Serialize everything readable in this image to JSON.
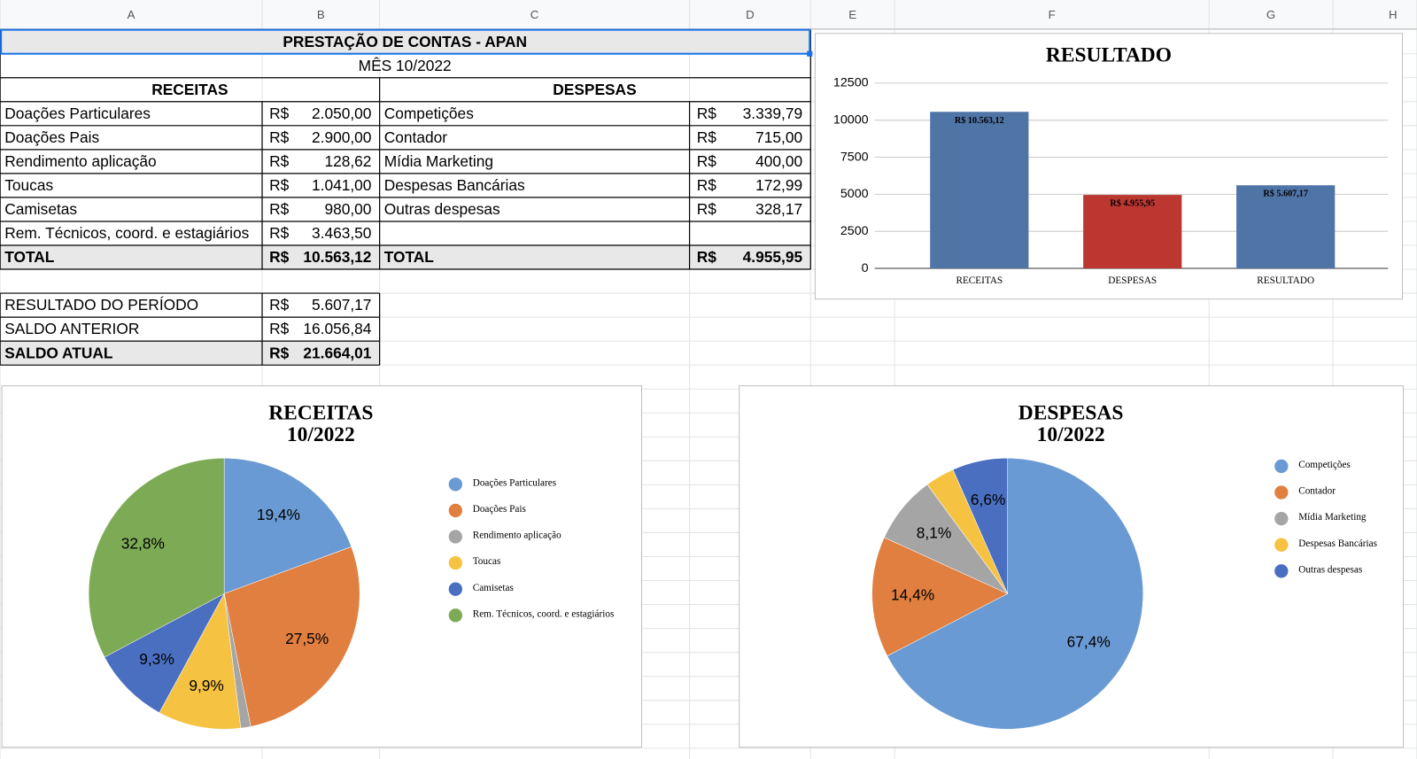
{
  "sheet": {
    "columns": [
      "A",
      "B",
      "C",
      "D",
      "E",
      "F",
      "G",
      "H"
    ]
  },
  "table": {
    "title": "PRESTAÇÃO DE CONTAS - APAN",
    "subtitle": "MÊS 10/2022",
    "receitas_header": "RECEITAS",
    "despesas_header": "DESPESAS",
    "receitas": [
      [
        "Doações Particulares",
        "R$",
        "2.050,00"
      ],
      [
        "Doações Pais",
        "R$",
        "2.900,00"
      ],
      [
        "Rendimento aplicação",
        "R$",
        "128,62"
      ],
      [
        "Toucas",
        "R$",
        "1.041,00"
      ],
      [
        "Camisetas",
        "R$",
        "980,00"
      ],
      [
        "Rem. Técnicos, coord. e estagiários",
        "R$",
        "3.463,50"
      ]
    ],
    "despesas": [
      [
        "Competições",
        "R$",
        "3.339,79"
      ],
      [
        "Contador",
        "R$",
        "715,00"
      ],
      [
        "Mídia Marketing",
        "R$",
        "400,00"
      ],
      [
        "Despesas Bancárias",
        "R$",
        "172,99"
      ],
      [
        "Outras despesas",
        "R$",
        "328,17"
      ]
    ],
    "totals": [
      [
        "TOTAL",
        "R$",
        "10.563,12"
      ],
      [
        "TOTAL",
        "R$",
        "4.955,95"
      ]
    ],
    "summary": [
      [
        "RESULTADO DO PERÍODO",
        "R$",
        "5.607,17"
      ],
      [
        "SALDO ANTERIOR",
        "R$",
        "16.056,84"
      ],
      [
        "SALDO ATUAL",
        "R$",
        "21.664,01"
      ]
    ]
  },
  "chart_data": [
    {
      "type": "bar",
      "title": "RESULTADO",
      "categories": [
        "RECEITAS",
        "DESPESAS",
        "RESULTADO"
      ],
      "values": [
        10563.12,
        4955.95,
        5607.17
      ],
      "value_labels": [
        "R$  10.563,12",
        "R$  4.955,95",
        "R$  5.607,17"
      ],
      "colors": [
        "#4f74a6",
        "#bd3731",
        "#4f74a6"
      ],
      "ylim": [
        0,
        12500
      ],
      "yticks": [
        0,
        2500,
        5000,
        7500,
        10000,
        12500
      ],
      "grid": true
    },
    {
      "type": "pie",
      "title": "RECEITAS",
      "subtitle": "10/2022",
      "categories": [
        "Doações Particulares",
        "Doações Pais",
        "Rendimento aplicação",
        "Toucas",
        "Camisetas",
        "Rem. Técnicos, coord. e estagiários"
      ],
      "values": [
        19.4,
        27.5,
        1.2,
        9.9,
        9.3,
        32.8
      ],
      "value_labels": [
        "19,4%",
        "27,5%",
        null,
        "9,9%",
        "9,3%",
        "32,8%"
      ],
      "colors": [
        "#6a9ad3",
        "#e07f3f",
        "#a5a5a5",
        "#f5c242",
        "#4a6fc0",
        "#7dab55"
      ],
      "legend": "right"
    },
    {
      "type": "pie",
      "title": "DESPESAS",
      "subtitle": "10/2022",
      "categories": [
        "Competições",
        "Contador",
        "Mídia Marketing",
        "Despesas Bancárias",
        "Outras despesas"
      ],
      "values": [
        67.4,
        14.4,
        8.1,
        3.5,
        6.6
      ],
      "value_labels": [
        "67,4%",
        "14,4%",
        "8,1%",
        null,
        "6,6%"
      ],
      "colors": [
        "#6a9ad3",
        "#e07f3f",
        "#a5a5a5",
        "#f5c242",
        "#4a6fc0"
      ],
      "legend": "right"
    }
  ]
}
